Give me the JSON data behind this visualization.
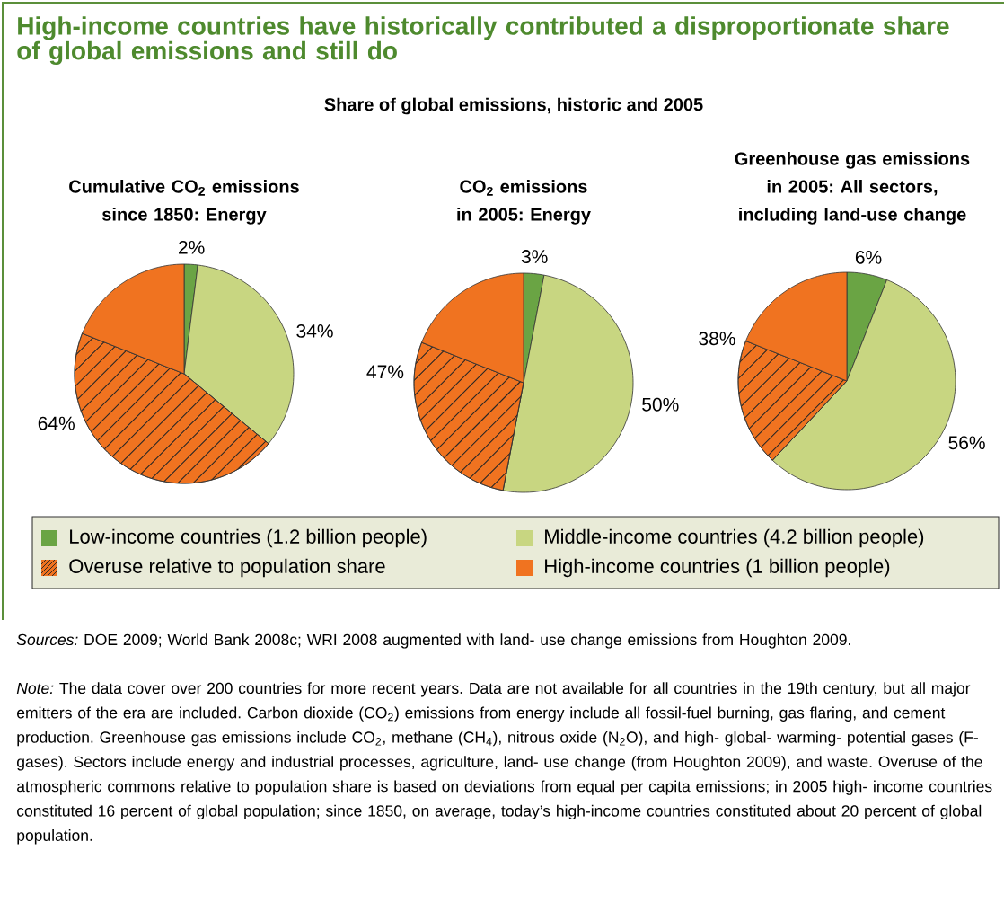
{
  "chart_data": [
    {
      "type": "other",
      "title": "High-income countries have historically contributed a disproportionate share of global emissions and still do",
      "subtitle": "Share of global emissions, historic and 2005",
      "annotations": [
        "*Sources:* DOE 2009; World Bank 2008c; WRI 2008 augmented with land- use change emissions from Houghton 2009.",
        "*Note:* The data cover over 200 countries for more recent years. Data are not available for all countries in the 19th century, but all major emitters of the era are included. Carbon dioxide (CO$_{2}$) emissions from energy include all fossil-fuel burning, gas flaring, and cement production. Greenhouse gas emissions include CO$_{2}$, methane (CH$_{4}$), nitrous oxide (N$_{2}$O), and high- global- warming- potential gases (F-gases). Sectors include energy and industrial processes, agriculture, land- use change (from Houghton 2009), and waste. Overuse of the atmospheric commons relative to population share is based on deviations from equal per capita emissions; in 2005 high- income countries constituted 16 percent of global population; since 1850, on average, today’s high-income countries constituted about 20 percent of global population."
      ]
    },
    {
      "type": "pie",
      "title": "Cumulative CO$_{2}$ emissions since 1850: Energy",
      "categories": [
        "Low-income countries (1.2 billion people)",
        "Middle-income countries (4.2 billion people)",
        "Overuse relative to population share",
        "High-income countries (1 billion people)"
      ],
      "values": [
        2,
        34,
        45,
        19
      ],
      "colors": [
        "#6aa444",
        "#c8d681",
        "#f07320",
        "#f07320"
      ],
      "value_labels": [
        "2%",
        "34%",
        null,
        null
      ],
      "annotations": [
        "64%"
      ],
      "legend": "bottom"
    },
    {
      "type": "pie",
      "title": "CO$_{2}$ emissions in 2005: Energy",
      "categories": [
        null,
        null,
        null,
        null
      ],
      "values": [
        3,
        50,
        28,
        19
      ],
      "colors": [
        "#6aa444",
        "#c8d681",
        "#f07320",
        "#f07320"
      ],
      "value_labels": [
        "3%",
        "50%",
        null,
        null
      ],
      "annotations": [
        "47%"
      ]
    },
    {
      "type": "pie",
      "title": "Greenhouse gas emissions in 2005: All sectors, including land-use change",
      "categories": [
        null,
        null,
        null,
        null
      ],
      "values": [
        6,
        56,
        19,
        19
      ],
      "colors": [
        "#6aa444",
        "#c8d681",
        "#f07320",
        "#f07320"
      ],
      "value_labels": [
        "6%",
        "56%",
        null,
        null
      ],
      "annotations": [
        "38%"
      ]
    }
  ]
}
